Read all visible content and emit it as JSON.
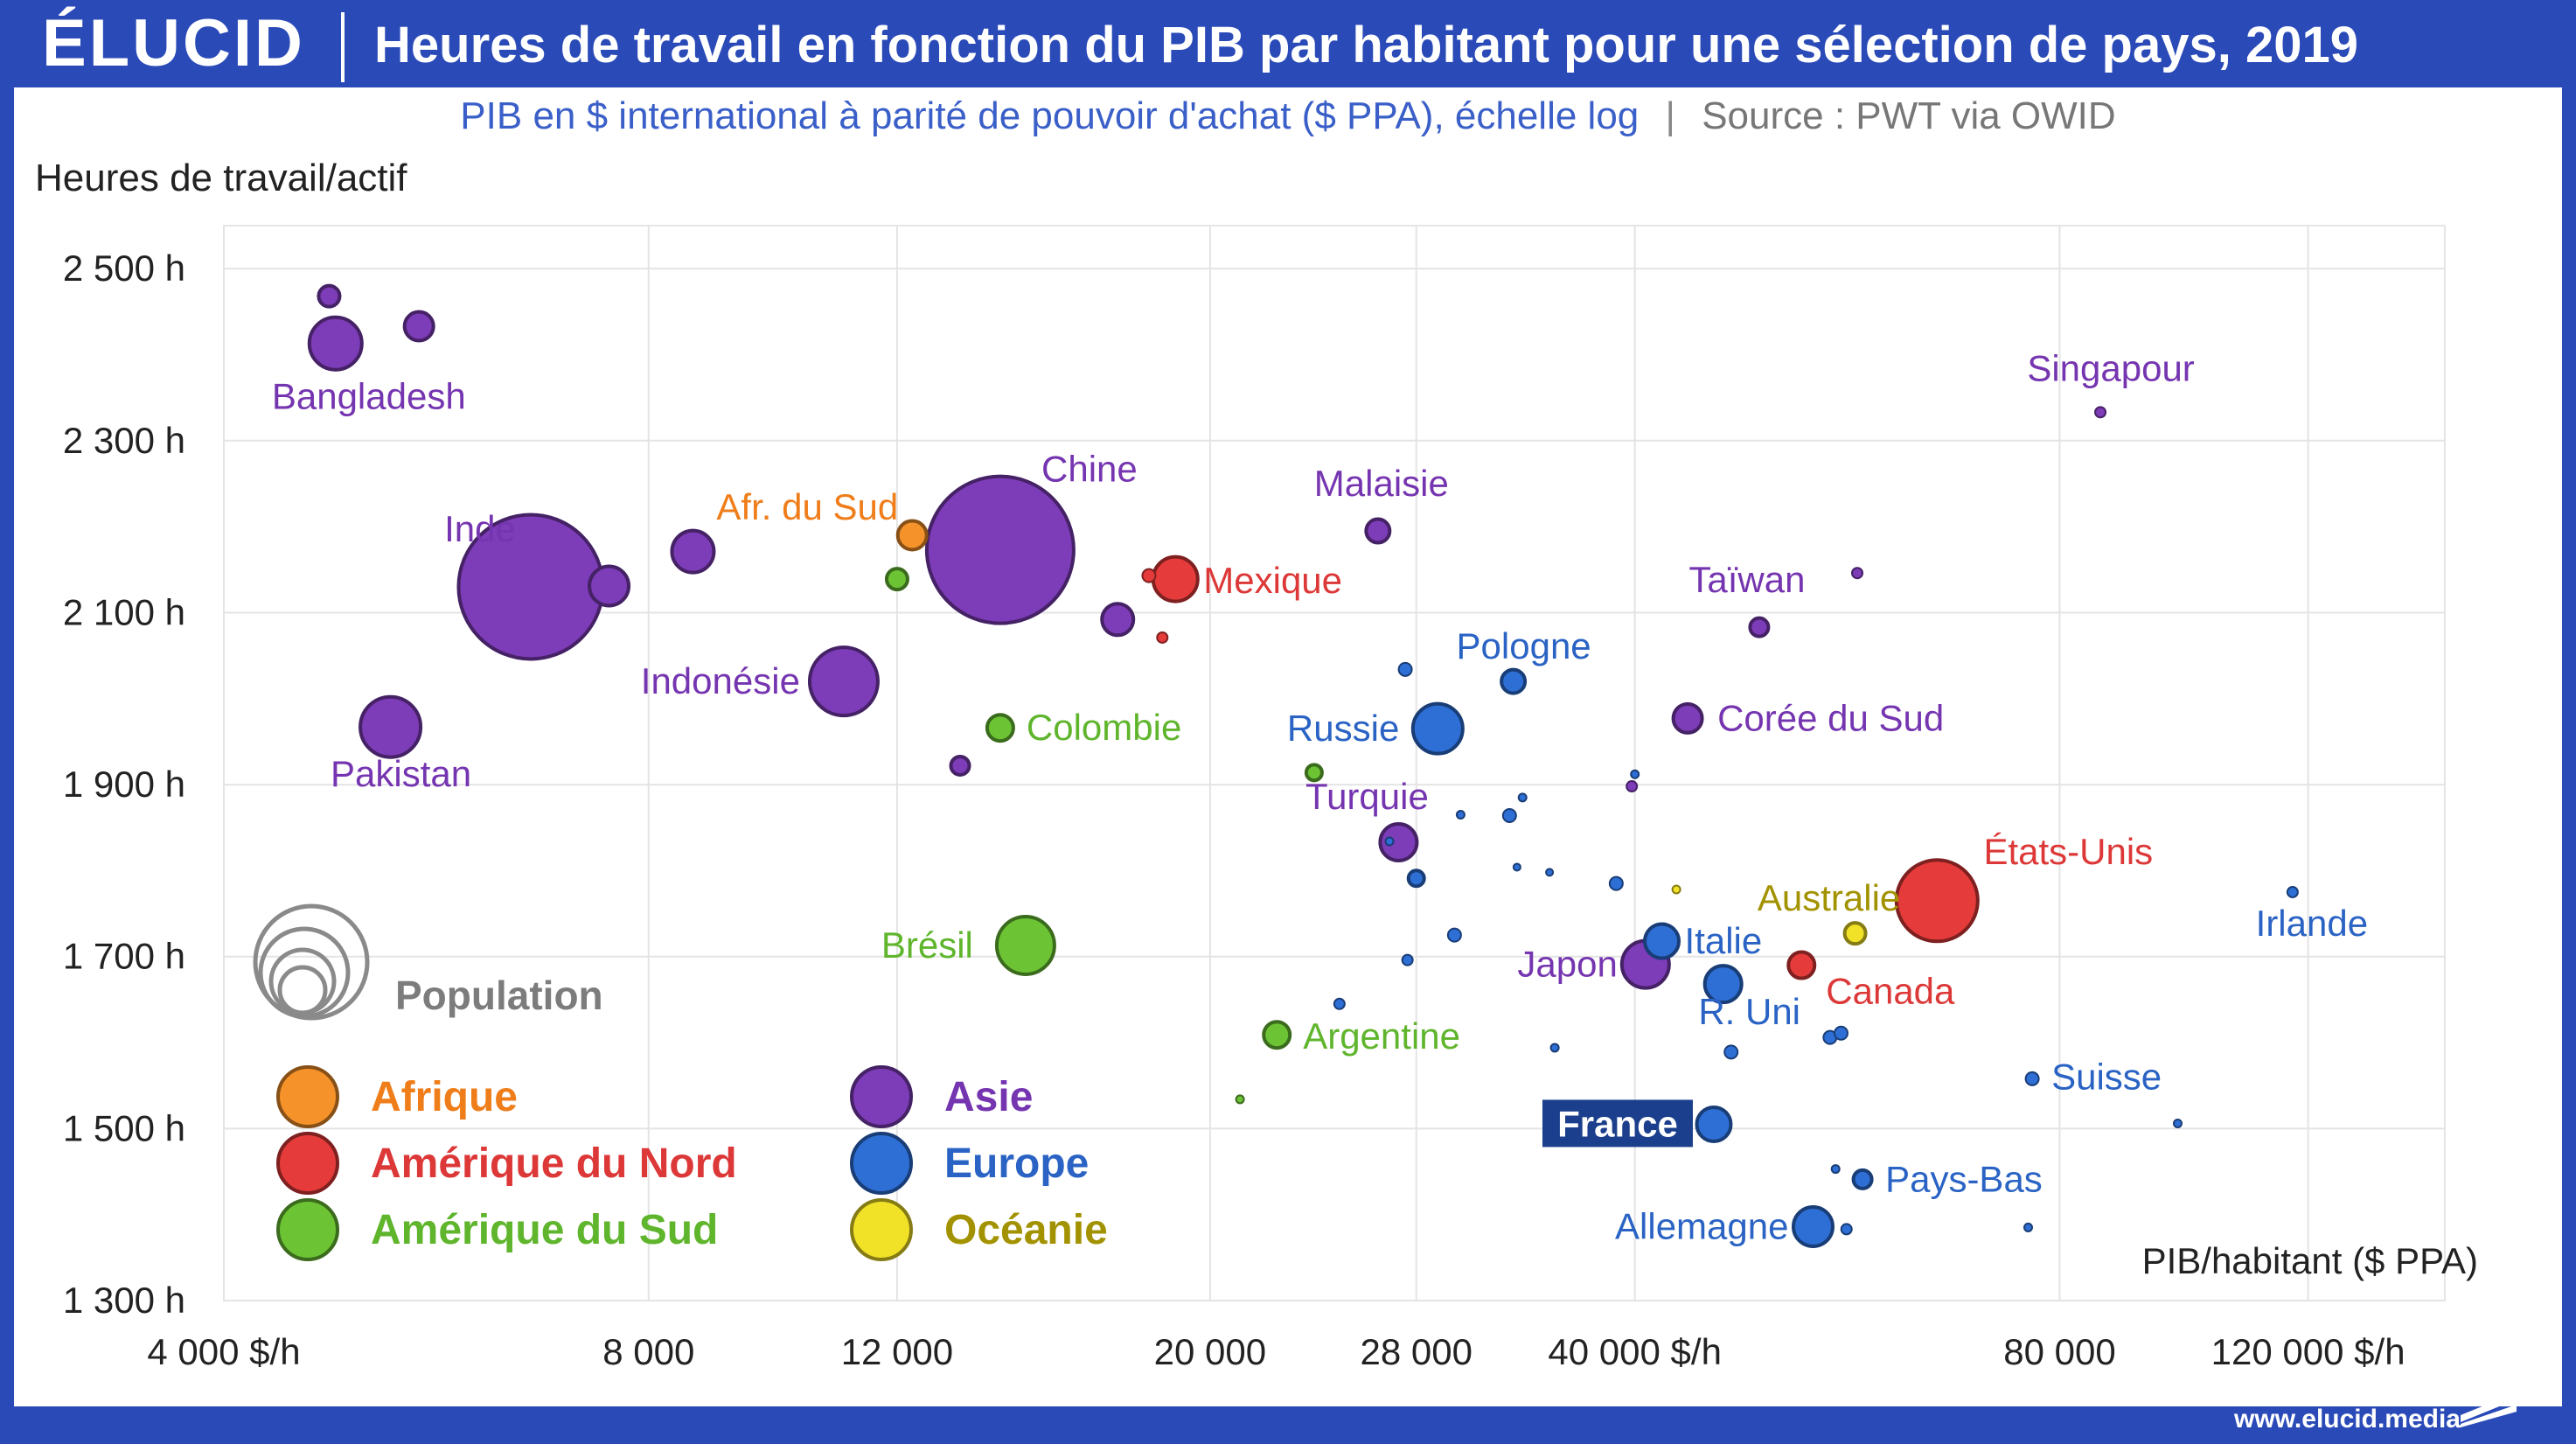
{
  "header": {
    "logo": "ÉLUCID",
    "title": "Heures de travail en fonction du PIB par habitant pour une sélection de pays, 2019",
    "subtitle": "PIB en $ international à parité de pouvoir d'achat ($ PPA), échelle log",
    "separator": "|",
    "source": "Source : PWT via OWID",
    "url": "www.elucid.media"
  },
  "colors": {
    "background": "#2a4ab8",
    "title": "#ffffff",
    "subtitle": "#3a5fc8",
    "source": "#777777",
    "Afrique": "#f5922a",
    "Amérique du Nord": "#e53b3b",
    "Amérique du Sud": "#6cc334",
    "Asie": "#7d3cb8",
    "Europe": "#2e6fd6",
    "Océanie": "#f2e227",
    "highlight_label_bg": "#1b3f8c"
  },
  "chart_data": {
    "type": "scatter",
    "title": "Heures de travail en fonction du PIB par habitant pour une sélection de pays, 2019",
    "ylabel": "Heures de travail/actif",
    "xlabel": "PIB/habitant ($ PPA)",
    "x_scale": "log",
    "xlim": [
      4000,
      150000
    ],
    "ylim": [
      1300,
      2550
    ],
    "x_ticks": [
      {
        "value": 4000,
        "label": "4 000 $/h"
      },
      {
        "value": 8000,
        "label": "8 000"
      },
      {
        "value": 12000,
        "label": "12 000"
      },
      {
        "value": 20000,
        "label": "20 000"
      },
      {
        "value": 28000,
        "label": "28 000"
      },
      {
        "value": 40000,
        "label": "40 000 $/h"
      },
      {
        "value": 80000,
        "label": "80 000"
      },
      {
        "value": 120000,
        "label": "120 000 $/h"
      }
    ],
    "y_ticks": [
      {
        "value": 1300,
        "label": "1 300 h"
      },
      {
        "value": 1500,
        "label": "1 500 h"
      },
      {
        "value": 1700,
        "label": "1 700 h"
      },
      {
        "value": 1900,
        "label": "1 900 h"
      },
      {
        "value": 2100,
        "label": "2 100 h"
      },
      {
        "value": 2300,
        "label": "2 300 h"
      },
      {
        "value": 2500,
        "label": "2 500 h"
      }
    ],
    "grid": true,
    "legend_position": "bottom-left",
    "size_legend": "Population",
    "legend": [
      {
        "name": "Afrique"
      },
      {
        "name": "Amérique du Nord"
      },
      {
        "name": "Amérique du Sud"
      },
      {
        "name": "Asie"
      },
      {
        "name": "Europe"
      },
      {
        "name": "Océanie"
      }
    ],
    "points": [
      {
        "label": "Bangladesh",
        "region": "Asie",
        "x": 4800,
        "y": 2413,
        "size": 2.0
      },
      {
        "label": "",
        "region": "Asie",
        "x": 4750,
        "y": 2468,
        "size": 0.8
      },
      {
        "label": "",
        "region": "Asie",
        "x": 5500,
        "y": 2433,
        "size": 1.1
      },
      {
        "label": "Inde",
        "region": "Asie",
        "x": 6600,
        "y": 2130,
        "size": 5.5
      },
      {
        "label": "",
        "region": "Asie",
        "x": 7500,
        "y": 2131,
        "size": 1.5
      },
      {
        "label": "",
        "region": "Asie",
        "x": 8600,
        "y": 2171,
        "size": 1.6
      },
      {
        "label": "Pakistan",
        "region": "Asie",
        "x": 5250,
        "y": 1967,
        "size": 2.3
      },
      {
        "label": "Indonésie",
        "region": "Asie",
        "x": 11000,
        "y": 2020,
        "size": 2.6
      },
      {
        "label": "Chine",
        "region": "Asie",
        "x": 14200,
        "y": 2173,
        "size": 5.6
      },
      {
        "label": "Afr. du Sud",
        "region": "Afrique",
        "x": 12300,
        "y": 2190,
        "size": 1.1
      },
      {
        "label": "",
        "region": "Amérique du Sud",
        "x": 12000,
        "y": 2139,
        "size": 0.8
      },
      {
        "label": "Colombie",
        "region": "Amérique du Sud",
        "x": 14200,
        "y": 1966,
        "size": 1.0
      },
      {
        "label": "",
        "region": "Asie",
        "x": 13300,
        "y": 1922,
        "size": 0.7
      },
      {
        "label": "",
        "region": "Asie",
        "x": 17200,
        "y": 2092,
        "size": 1.2
      },
      {
        "label": "Mexique",
        "region": "Amérique du Nord",
        "x": 18900,
        "y": 2139,
        "size": 1.7
      },
      {
        "label": "",
        "region": "Amérique du Nord",
        "x": 18100,
        "y": 2143,
        "size": 0.5
      },
      {
        "label": "",
        "region": "Amérique du Nord",
        "x": 18500,
        "y": 2071,
        "size": 0.4
      },
      {
        "label": "Malaisie",
        "region": "Asie",
        "x": 26300,
        "y": 2195,
        "size": 0.9
      },
      {
        "label": "Brésil",
        "region": "Amérique du Sud",
        "x": 14800,
        "y": 1713,
        "size": 2.2
      },
      {
        "label": "Argentine",
        "region": "Amérique du Sud",
        "x": 22300,
        "y": 1609,
        "size": 1.0
      },
      {
        "label": "",
        "region": "Amérique du Sud",
        "x": 23700,
        "y": 1914,
        "size": 0.6
      },
      {
        "label": "",
        "region": "Amérique du Sud",
        "x": 21000,
        "y": 1534,
        "size": 0.3
      },
      {
        "label": "Turquie",
        "region": "Asie",
        "x": 27200,
        "y": 1833,
        "size": 1.4
      },
      {
        "label": "",
        "region": "Europe",
        "x": 27500,
        "y": 2034,
        "size": 0.5
      },
      {
        "label": "Russie",
        "region": "Europe",
        "x": 29000,
        "y": 1965,
        "size": 1.9
      },
      {
        "label": "Pologne",
        "region": "Europe",
        "x": 32800,
        "y": 2020,
        "size": 0.9
      },
      {
        "label": "",
        "region": "Europe",
        "x": 26800,
        "y": 1834,
        "size": 0.3
      },
      {
        "label": "",
        "region": "Europe",
        "x": 28000,
        "y": 1791,
        "size": 0.6
      },
      {
        "label": "",
        "region": "Europe",
        "x": 30100,
        "y": 1865,
        "size": 0.3
      },
      {
        "label": "",
        "region": "Europe",
        "x": 32600,
        "y": 1864,
        "size": 0.5
      },
      {
        "label": "",
        "region": "Europe",
        "x": 33300,
        "y": 1885,
        "size": 0.3
      },
      {
        "label": "",
        "region": "Europe",
        "x": 33000,
        "y": 1804,
        "size": 0.25
      },
      {
        "label": "",
        "region": "Europe",
        "x": 34800,
        "y": 1798,
        "size": 0.25
      },
      {
        "label": "",
        "region": "Europe",
        "x": 29800,
        "y": 1725,
        "size": 0.5
      },
      {
        "label": "",
        "region": "Europe",
        "x": 27600,
        "y": 1696,
        "size": 0.4
      },
      {
        "label": "",
        "region": "Europe",
        "x": 24700,
        "y": 1645,
        "size": 0.4
      },
      {
        "label": "",
        "region": "Europe",
        "x": 35100,
        "y": 1594,
        "size": 0.3
      },
      {
        "label": "",
        "region": "Europe",
        "x": 38800,
        "y": 1785,
        "size": 0.5
      },
      {
        "label": "",
        "region": "Europe",
        "x": 40000,
        "y": 1912,
        "size": 0.3
      },
      {
        "label": "",
        "region": "Asie",
        "x": 39800,
        "y": 1898,
        "size": 0.4
      },
      {
        "label": "Japon",
        "region": "Asie",
        "x": 40700,
        "y": 1691,
        "size": 1.8
      },
      {
        "label": "Italie",
        "region": "Europe",
        "x": 41800,
        "y": 1718,
        "size": 1.3
      },
      {
        "label": "",
        "region": "Océanie",
        "x": 42800,
        "y": 1778,
        "size": 0.3
      },
      {
        "label": "R. Uni",
        "region": "Europe",
        "x": 46200,
        "y": 1668,
        "size": 1.4
      },
      {
        "label": "",
        "region": "Europe",
        "x": 46800,
        "y": 1589,
        "size": 0.5
      },
      {
        "label": "France",
        "region": "Europe",
        "x": 45500,
        "y": 1505,
        "size": 1.3
      },
      {
        "label": "Taïwan",
        "region": "Asie",
        "x": 49000,
        "y": 2083,
        "size": 0.7
      },
      {
        "label": "Corée du Sud",
        "region": "Asie",
        "x": 43600,
        "y": 1977,
        "size": 1.1
      },
      {
        "label": "",
        "region": "Asie",
        "x": 57500,
        "y": 2146,
        "size": 0.4
      },
      {
        "label": "Canada",
        "region": "Amérique du Nord",
        "x": 52500,
        "y": 1690,
        "size": 1.0
      },
      {
        "label": "Australie",
        "region": "Océanie",
        "x": 57300,
        "y": 1727,
        "size": 0.8
      },
      {
        "label": "États-Unis",
        "region": "Amérique du Nord",
        "x": 65500,
        "y": 1765,
        "size": 3.1
      },
      {
        "label": "",
        "region": "Europe",
        "x": 55000,
        "y": 1606,
        "size": 0.5
      },
      {
        "label": "",
        "region": "Europe",
        "x": 56000,
        "y": 1611,
        "size": 0.5
      },
      {
        "label": "Allemagne",
        "region": "Europe",
        "x": 53500,
        "y": 1386,
        "size": 1.5
      },
      {
        "label": "",
        "region": "Europe",
        "x": 56500,
        "y": 1383,
        "size": 0.4
      },
      {
        "label": "",
        "region": "Europe",
        "x": 55500,
        "y": 1453,
        "size": 0.3
      },
      {
        "label": "Pays-Bas",
        "region": "Europe",
        "x": 58000,
        "y": 1441,
        "size": 0.7
      },
      {
        "label": "Singapour",
        "region": "Asie",
        "x": 85500,
        "y": 2333,
        "size": 0.4
      },
      {
        "label": "Suisse",
        "region": "Europe",
        "x": 76500,
        "y": 1558,
        "size": 0.5
      },
      {
        "label": "",
        "region": "Europe",
        "x": 97000,
        "y": 1506,
        "size": 0.3
      },
      {
        "label": "",
        "region": "Europe",
        "x": 76000,
        "y": 1385,
        "size": 0.3
      },
      {
        "label": "Irlande",
        "region": "Europe",
        "x": 117000,
        "y": 1775,
        "size": 0.4
      }
    ]
  }
}
